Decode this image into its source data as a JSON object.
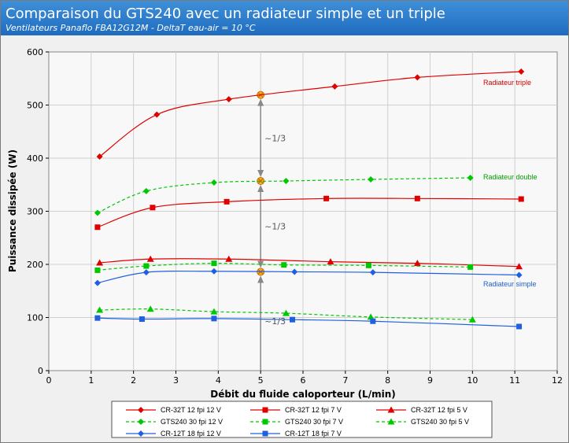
{
  "header": {
    "title": "Comparaison du GTS240 avec un radiateur simple et un triple",
    "subtitle": "Ventilateurs Panaflo FBA12G12M - DeltaT eau-air = 10 °C"
  },
  "chart_data": {
    "type": "line",
    "xlabel": "Débit du fluide caloporteur (L/min)",
    "ylabel": "Puissance dissipée (W)",
    "xlim": [
      0,
      12
    ],
    "ylim": [
      0,
      600
    ],
    "xticks": [
      0,
      1,
      2,
      3,
      4,
      5,
      6,
      7,
      8,
      9,
      10,
      11,
      12
    ],
    "yticks": [
      0,
      100,
      200,
      300,
      400,
      500,
      600
    ],
    "grid": true,
    "legend_position": "bottom",
    "series": [
      {
        "name": "CR-32T 12 fpi 12 V",
        "color": "#e00000",
        "dash": "solid",
        "marker": "diamond",
        "x": [
          1.2,
          2.55,
          4.25,
          6.75,
          8.7,
          11.15
        ],
        "y": [
          403,
          482,
          511,
          535,
          552,
          563
        ]
      },
      {
        "name": "CR-32T 12 fpi 7 V",
        "color": "#e00000",
        "dash": "solid",
        "marker": "square",
        "x": [
          1.15,
          2.45,
          4.2,
          6.55,
          8.7,
          11.15
        ],
        "y": [
          270,
          307,
          318,
          324,
          324,
          323
        ]
      },
      {
        "name": "CR-32T 12 fpi 5 V",
        "color": "#e00000",
        "dash": "solid",
        "marker": "triangle",
        "x": [
          1.2,
          2.4,
          4.25,
          6.65,
          8.7,
          11.1
        ],
        "y": [
          203,
          210,
          210,
          205,
          202,
          196
        ]
      },
      {
        "name": "GTS240 30 fpi 12 V",
        "color": "#00c800",
        "dash": "dashed",
        "marker": "diamond",
        "x": [
          1.15,
          2.3,
          3.9,
          5.6,
          7.6,
          9.95
        ],
        "y": [
          297,
          338,
          354,
          357,
          360,
          363
        ]
      },
      {
        "name": "GTS240 30 fpi 7 V",
        "color": "#00c800",
        "dash": "dashed",
        "marker": "square",
        "x": [
          1.15,
          2.3,
          3.9,
          5.55,
          7.55,
          9.95
        ],
        "y": [
          189,
          197,
          202,
          199,
          198,
          195
        ]
      },
      {
        "name": "GTS240 30 fpi 5 V",
        "color": "#00c800",
        "dash": "dashed",
        "marker": "triangle",
        "x": [
          1.2,
          2.4,
          3.9,
          5.6,
          7.6,
          10.0
        ],
        "y": [
          114,
          116,
          111,
          108,
          101,
          96
        ]
      },
      {
        "name": "CR-12T 18 fpi 12 V",
        "color": "#2060e0",
        "dash": "solid",
        "marker": "diamond",
        "x": [
          1.15,
          2.3,
          3.9,
          5.8,
          7.65,
          11.1
        ],
        "y": [
          165,
          185,
          187,
          186,
          185,
          180
        ]
      },
      {
        "name": "CR-12T 18 fpi 7 V",
        "color": "#2060e0",
        "dash": "solid",
        "marker": "square",
        "x": [
          1.15,
          2.2,
          3.9,
          5.75,
          7.65,
          11.1
        ],
        "y": [
          99,
          97,
          98,
          96,
          93,
          83
        ]
      }
    ],
    "annotations": {
      "curve_labels": [
        {
          "text": "Radiateur triple",
          "color": "#cc0000"
        },
        {
          "text": "Radiateur double",
          "color": "#00a000"
        },
        {
          "text": "Radiateur simple",
          "color": "#2060d0"
        }
      ],
      "fractions": [
        "~1/3",
        "~1/3",
        "~1/3"
      ],
      "marked_x": 5,
      "marked_points": [
        519,
        357,
        186
      ]
    }
  }
}
